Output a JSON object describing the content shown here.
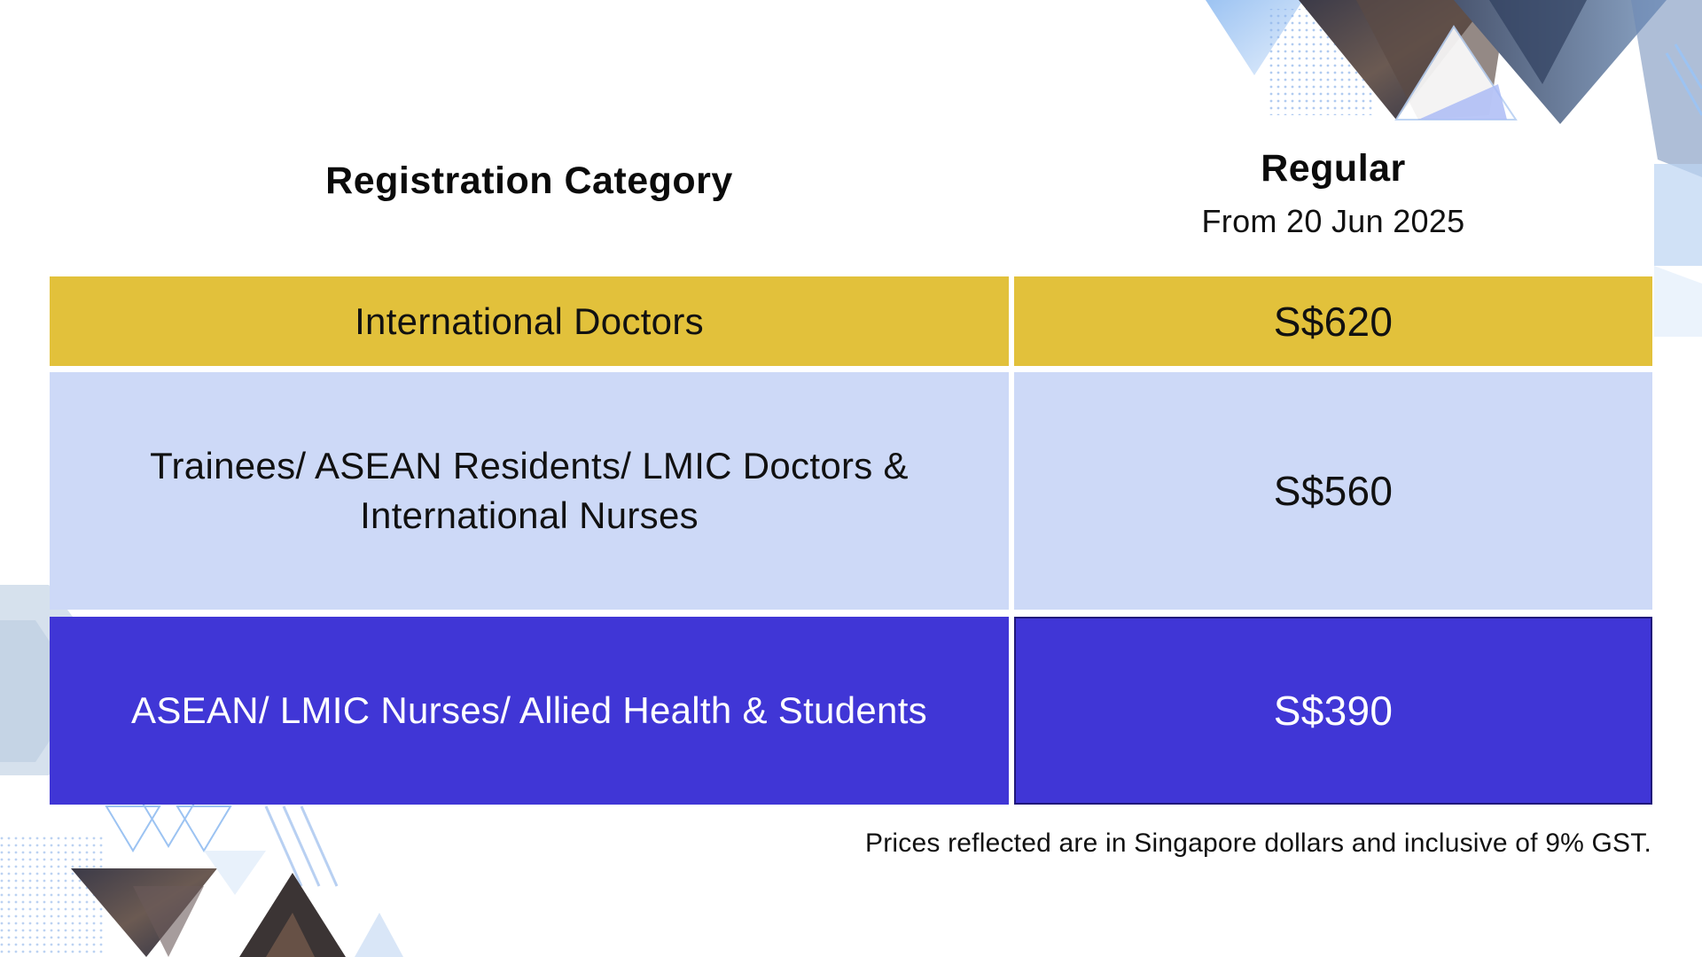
{
  "header": {
    "category_label": "Registration Category",
    "price_title": "Regular",
    "price_subtitle": "From 20 Jun 2025"
  },
  "rows": [
    {
      "category": "International Doctors",
      "price": "S$620"
    },
    {
      "category": "Trainees/ ASEAN Residents/ LMIC Doctors & International Nurses",
      "price": "S$560"
    },
    {
      "category": "ASEAN/ LMIC Nurses/ Allied Health & Students",
      "price": "S$390"
    }
  ],
  "footnote": "Prices reflected are in Singapore dollars and inclusive of 9% GST.",
  "colors": {
    "row_1": "#e2c13b",
    "row_2": "#cdd9f7",
    "row_3": "#4036d6"
  }
}
